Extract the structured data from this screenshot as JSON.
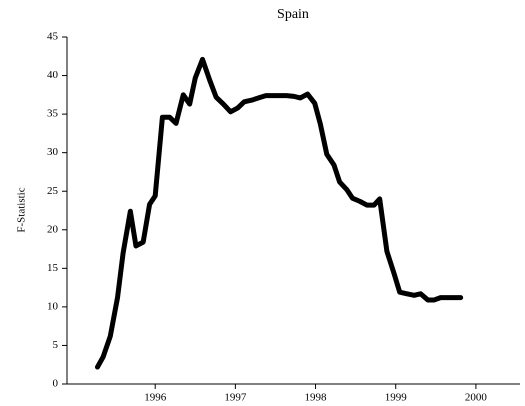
{
  "chart_data": {
    "type": "line",
    "title": "Spain",
    "y_label": "F-Statistic",
    "x": [
      1995.28,
      1995.35,
      1995.44,
      1995.53,
      1995.6,
      1995.69,
      1995.76,
      1995.85,
      1995.93,
      1996.0,
      1996.09,
      1996.18,
      1996.26,
      1996.35,
      1996.43,
      1996.5,
      1996.59,
      1996.68,
      1996.76,
      1996.85,
      1996.94,
      1997.03,
      1997.11,
      1997.2,
      1997.29,
      1997.38,
      1997.46,
      1997.55,
      1997.64,
      1997.73,
      1997.81,
      1997.9,
      1997.99,
      1998.06,
      1998.14,
      1998.23,
      1998.3,
      1998.39,
      1998.46,
      1998.55,
      1998.64,
      1998.73,
      1998.8,
      1998.89,
      1998.98,
      1999.05,
      1999.14,
      1999.23,
      1999.31,
      1999.4,
      1999.48,
      1999.56,
      1999.64,
      1999.73,
      1999.81
    ],
    "series": [
      {
        "name": "F-Statistic",
        "color": "#000000",
        "values": [
          2.2,
          3.5,
          6.2,
          11.2,
          17,
          22.4,
          17.9,
          18.4,
          23.3,
          24.4,
          34.6,
          34.6,
          33.8,
          37.5,
          36.3,
          39.7,
          42.1,
          39.4,
          37.2,
          36.3,
          35.3,
          35.8,
          36.6,
          36.8,
          37.1,
          37.4,
          37.4,
          37.4,
          37.4,
          37.3,
          37.1,
          37.6,
          36.4,
          33.7,
          29.8,
          28.4,
          26.2,
          25.2,
          24.1,
          23.7,
          23.2,
          23.2,
          24,
          17.2,
          14.3,
          11.9,
          11.7,
          11.5,
          11.7,
          10.9,
          10.9,
          11.2,
          11.2,
          11.2,
          11.2
        ]
      }
    ],
    "xlim": [
      1994.9,
      2000.55
    ],
    "xticks": [
      1996,
      1997,
      1998,
      1999,
      2000
    ],
    "ylim": [
      0,
      45
    ],
    "yticks": [
      0,
      5,
      10,
      15,
      20,
      25,
      30,
      35,
      40,
      45
    ],
    "grid": false
  }
}
